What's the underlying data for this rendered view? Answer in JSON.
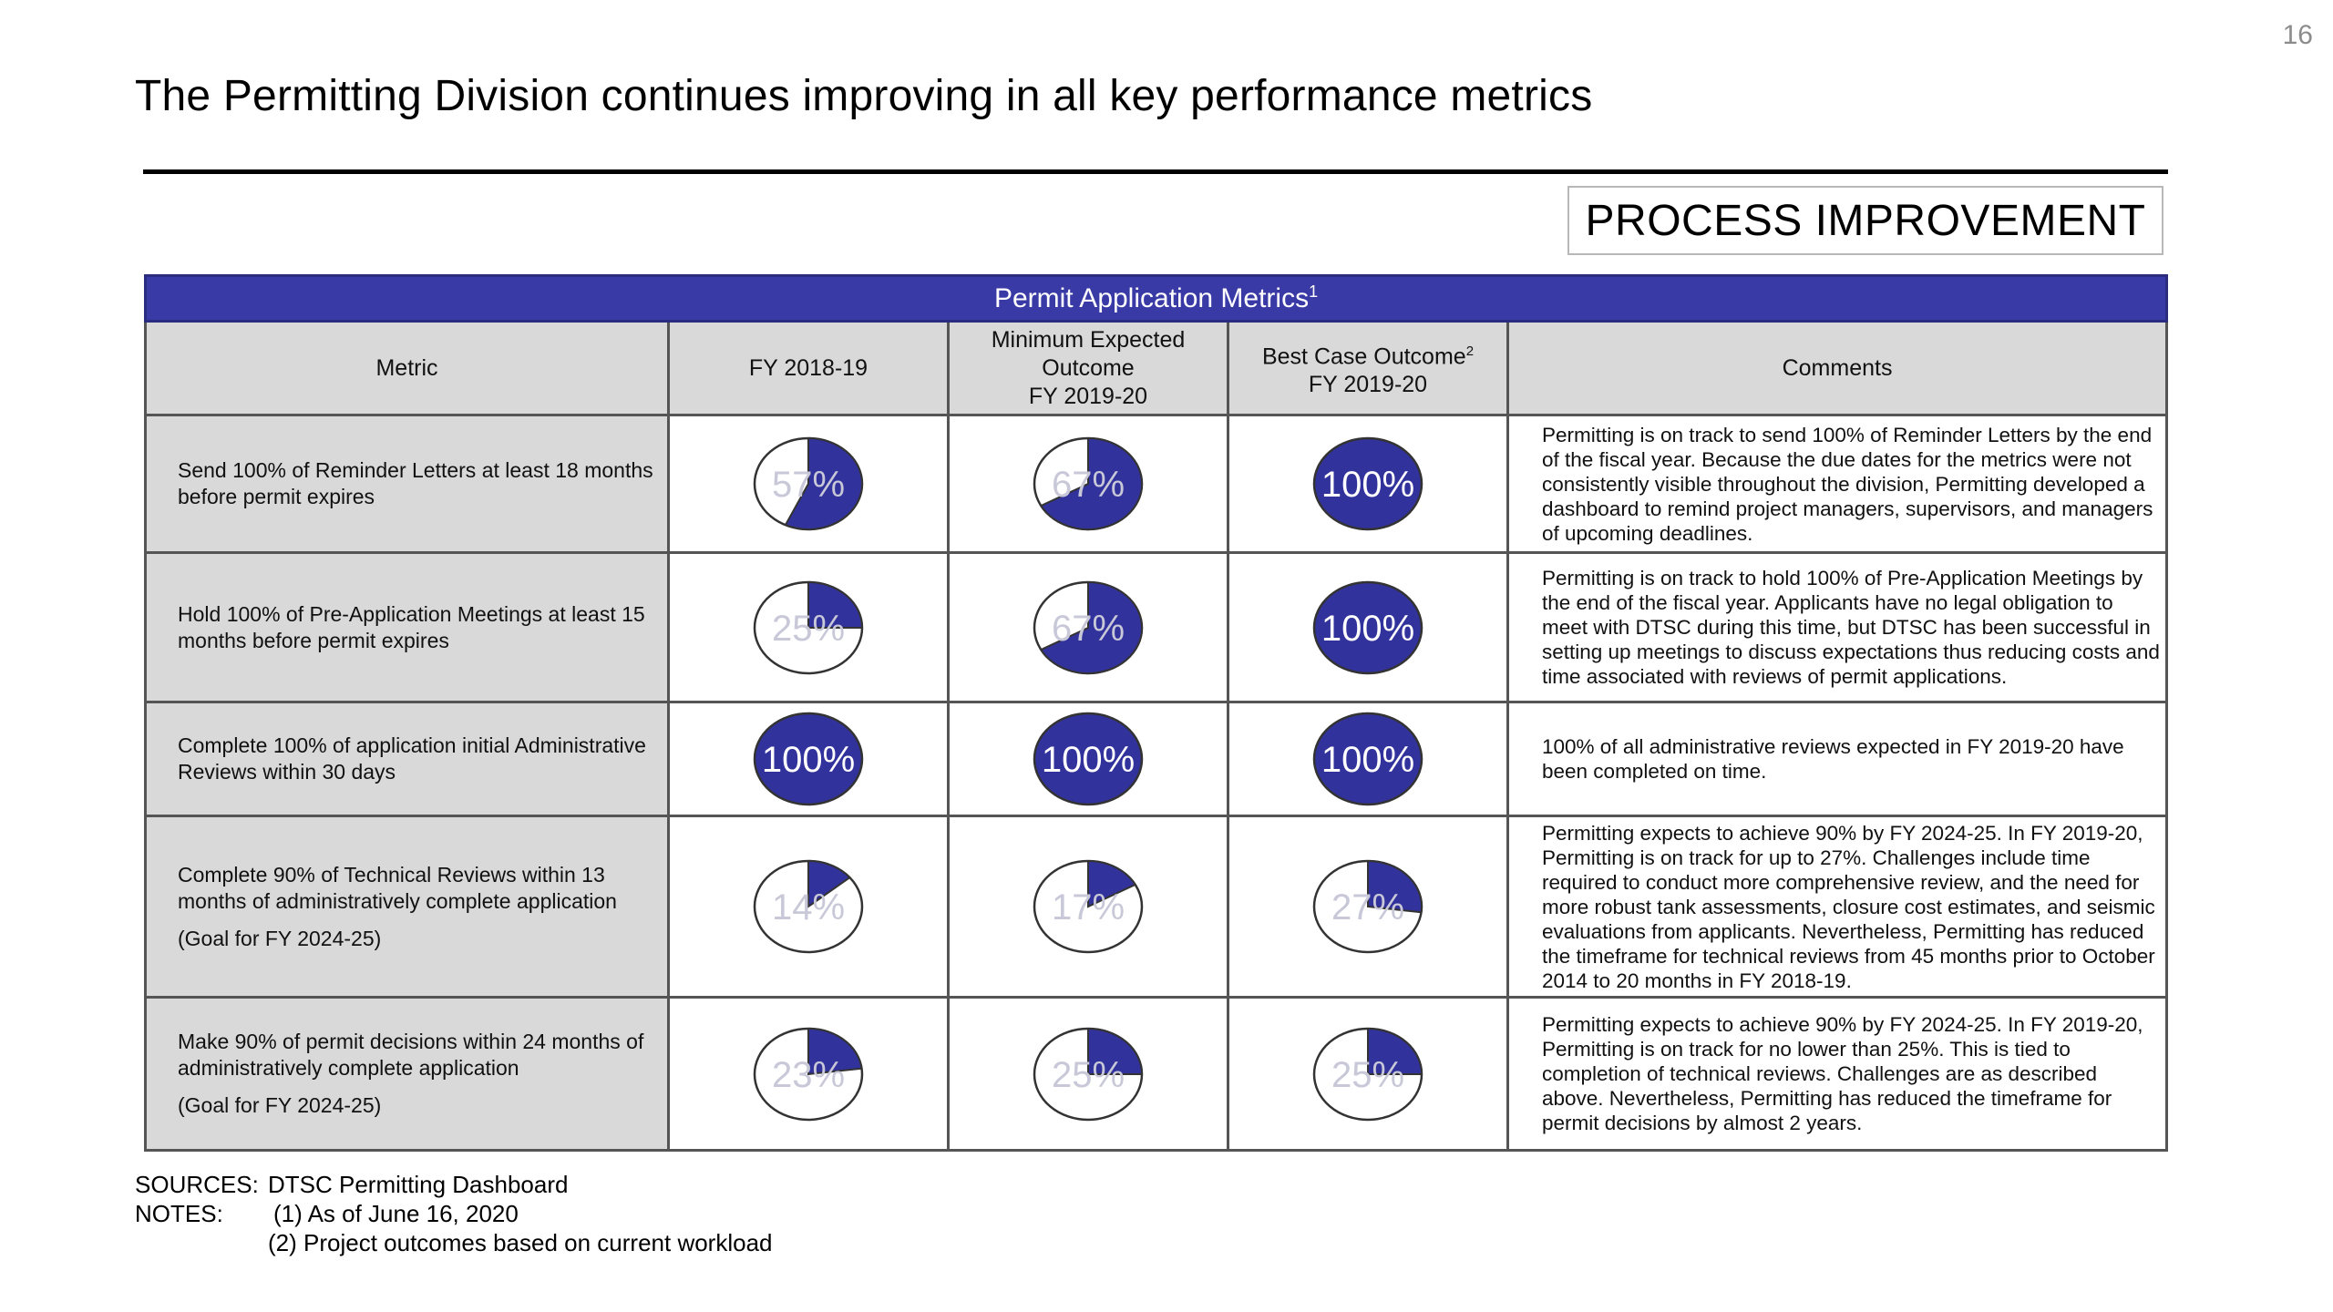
{
  "page_number": "16",
  "title": "The Permitting Division continues improving in all key performance metrics",
  "section_badge": "PROCESS IMPROVEMENT",
  "table": {
    "caption": "Permit Application Metrics",
    "caption_note": "1",
    "headers": {
      "metric": "Metric",
      "fy1819": "FY 2018-19",
      "min_expected_line1": "Minimum Expected",
      "min_expected_line2": "Outcome",
      "min_expected_line3": "FY 2019-20",
      "best_case_line1": "Best Case Outcome",
      "best_case_note": "2",
      "best_case_line2": "FY 2019-20",
      "comments": "Comments"
    },
    "colors": {
      "pie_fill": "#32329c",
      "header_bar": "#3a3aa6"
    },
    "rows": [
      {
        "metric": "Send 100% of Reminder Letters at least 18 months before permit expires",
        "goal": "",
        "fy1819": {
          "value": 0.57,
          "label": "57%"
        },
        "min_expected": {
          "value": 0.67,
          "label": "67%"
        },
        "best_case": {
          "value": 1.0,
          "label": "100%"
        },
        "comment": "Permitting is on track to send 100% of Reminder Letters by the end of the fiscal year. Because the due dates for the metrics were not consistently visible throughout the division, Permitting developed a dashboard to remind project managers, supervisors, and managers of upcoming deadlines."
      },
      {
        "metric": "Hold 100% of Pre-Application Meetings at least 15 months before permit expires",
        "goal": "",
        "fy1819": {
          "value": 0.25,
          "label": "25%"
        },
        "min_expected": {
          "value": 0.67,
          "label": "67%"
        },
        "best_case": {
          "value": 1.0,
          "label": "100%"
        },
        "comment": "Permitting is on track to hold 100% of Pre-Application Meetings by the end of the fiscal year. Applicants have no legal obligation to meet with DTSC during this time, but DTSC has been successful in setting up meetings to discuss expectations thus reducing costs and time associated with reviews of permit applications."
      },
      {
        "metric": "Complete 100% of application initial Administrative Reviews within 30 days",
        "goal": "",
        "fy1819": {
          "value": 1.0,
          "label": "100%"
        },
        "min_expected": {
          "value": 1.0,
          "label": "100%"
        },
        "best_case": {
          "value": 1.0,
          "label": "100%"
        },
        "comment": "100% of all administrative reviews expected in FY 2019-20 have been completed on time."
      },
      {
        "metric": "Complete 90% of Technical Reviews within 13 months of administratively complete application",
        "goal": "(Goal for FY 2024-25)",
        "fy1819": {
          "value": 0.14,
          "label": "14%"
        },
        "min_expected": {
          "value": 0.17,
          "label": "17%"
        },
        "best_case": {
          "value": 0.27,
          "label": "27%"
        },
        "comment": "Permitting expects to achieve 90% by FY 2024-25. In FY 2019-20, Permitting is on track for up to 27%. Challenges include time required to conduct more comprehensive review, and the need for more robust tank assessments, closure cost estimates, and seismic evaluations from applicants. Nevertheless, Permitting has reduced the timeframe for technical reviews from 45 months prior to October 2014 to 20 months in FY 2018-19."
      },
      {
        "metric": "Make 90% of permit decisions within 24 months of administratively complete application",
        "goal": "(Goal for FY 2024-25)",
        "fy1819": {
          "value": 0.23,
          "label": "23%"
        },
        "min_expected": {
          "value": 0.25,
          "label": "25%"
        },
        "best_case": {
          "value": 0.25,
          "label": "25%"
        },
        "comment": "Permitting expects to achieve 90% by FY 2024-25. In FY 2019-20, Permitting is on track for no lower than 25%. This is tied to completion of technical reviews. Challenges are as described above. Nevertheless, Permitting has reduced the timeframe for permit decisions by almost 2 years."
      }
    ]
  },
  "footer": {
    "sources_label": "SOURCES:",
    "sources_text": "DTSC Permitting Dashboard",
    "notes_label": "NOTES:",
    "note1": "(1) As of June 16, 2020",
    "note2": "(2) Project outcomes based on current workload"
  }
}
